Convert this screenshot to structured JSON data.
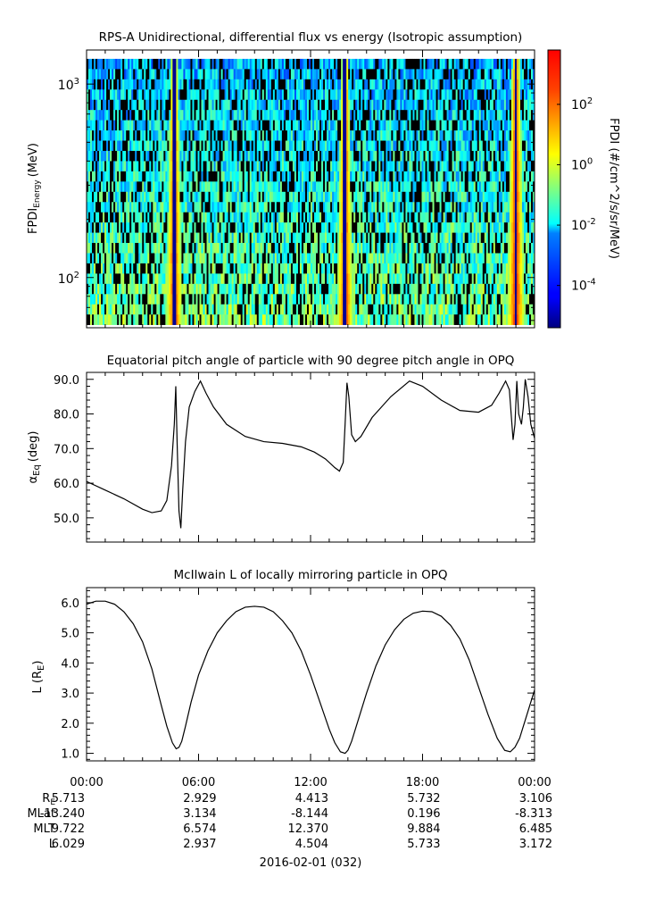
{
  "chart_data": [
    {
      "type": "heatmap",
      "title": "RPS-A Unidirectional, differential flux vs energy (Isotropic assumption)",
      "ylabel": "FPDI",
      "ylabel_sub": "Energy",
      "ylabel_unit": "(MeV)",
      "yscale": "log",
      "ylim": [
        55,
        1500
      ],
      "y_ticks": [
        {
          "value": 100,
          "base": "10",
          "exp": "2"
        },
        {
          "value": 1000,
          "base": "10",
          "exp": "3"
        }
      ],
      "xlim": [
        0,
        24
      ],
      "colorbar": {
        "label": "FPDI (#/cm^2/s/sr/MeV)",
        "scale": "log",
        "range": [
          -5.4,
          3.8
        ],
        "ticks": [
          {
            "value": -4,
            "base": "10",
            "exp": "-4"
          },
          {
            "value": -2,
            "base": "10",
            "exp": "-2"
          },
          {
            "value": 0,
            "base": "10",
            "exp": "0"
          },
          {
            "value": 2,
            "base": "10",
            "exp": "2"
          }
        ]
      },
      "dips": [
        {
          "t": 4.7,
          "min_alt": [
            4.4,
            4.85,
            5.25
          ],
          "half_width": 0.45
        },
        {
          "t": 13.85,
          "min_alt": [
            13.6,
            13.95,
            14.3
          ],
          "half_width": 0.45
        },
        {
          "t": 23.0,
          "min_alt": [
            22.7,
            23.1,
            23.55
          ],
          "half_width": 0.5
        }
      ]
    },
    {
      "type": "line",
      "title": "Equatorial pitch angle of particle with 90 degree pitch angle in OPQ",
      "ylabel": "α",
      "ylabel_sub": "Eq",
      "ylabel_unit": "(deg)",
      "ylim": [
        43,
        92
      ],
      "xlim": [
        0,
        24
      ],
      "y_ticks": [
        50,
        60,
        70,
        80,
        90
      ],
      "series": [
        {
          "x": [
            0,
            1,
            2,
            3,
            3.5,
            4.0,
            4.3,
            4.55,
            4.7,
            4.78,
            4.85,
            4.95,
            5.05,
            5.15,
            5.3,
            5.5,
            5.8,
            6.1,
            6.4,
            6.8,
            7.5,
            8.5,
            9.5,
            10.5,
            11.5,
            12.2,
            12.8,
            13.3,
            13.55,
            13.75,
            13.85,
            13.95,
            14.05,
            14.2,
            14.4,
            14.7,
            15.3,
            16.3,
            17.3,
            18.0,
            19.0,
            20.0,
            21.0,
            21.7,
            22.1,
            22.45,
            22.65,
            22.85,
            22.95,
            23.05,
            23.15,
            23.3,
            23.4,
            23.5,
            23.65,
            23.8,
            24.0
          ],
          "y": [
            60.5,
            58.0,
            55.5,
            52.5,
            51.5,
            52.0,
            55.0,
            65.0,
            77.0,
            88.0,
            72.0,
            52.0,
            47.0,
            58.0,
            72.0,
            82.0,
            86.5,
            89.5,
            86.0,
            82.0,
            77.0,
            73.5,
            72.0,
            71.5,
            70.5,
            69.0,
            67.0,
            64.5,
            63.5,
            66.0,
            77.0,
            89.0,
            85.0,
            74.0,
            72.0,
            73.5,
            79.0,
            85.0,
            89.5,
            88.0,
            84.0,
            81.0,
            80.5,
            82.5,
            86.0,
            89.5,
            87.0,
            72.5,
            77.0,
            89.5,
            80.0,
            77.0,
            82.0,
            90.0,
            85.0,
            77.0,
            73.0
          ]
        }
      ]
    },
    {
      "type": "line",
      "title": "McIlwain L of locally mirroring particle in OPQ",
      "ylabel": "L (R",
      "ylabel_sub": "E",
      "ylabel_unit": ")",
      "ylim": [
        0.75,
        6.5
      ],
      "xlim": [
        0,
        24
      ],
      "y_ticks": [
        1,
        2,
        3,
        4,
        5,
        6
      ],
      "series": [
        {
          "x": [
            0,
            0.5,
            1.0,
            1.5,
            2.0,
            2.5,
            3.0,
            3.5,
            4.0,
            4.3,
            4.6,
            4.8,
            4.95,
            5.1,
            5.3,
            5.6,
            6.0,
            6.5,
            7.0,
            7.5,
            8.0,
            8.5,
            9.0,
            9.5,
            10.0,
            10.5,
            11.0,
            11.5,
            12.0,
            12.5,
            13.0,
            13.3,
            13.6,
            13.85,
            14.0,
            14.2,
            14.5,
            15.0,
            15.5,
            16.0,
            16.5,
            17.0,
            17.5,
            18.0,
            18.5,
            19.0,
            19.5,
            20.0,
            20.5,
            21.0,
            21.5,
            22.0,
            22.4,
            22.7,
            22.95,
            23.2,
            23.5,
            23.8,
            24.0
          ],
          "y": [
            5.95,
            6.05,
            6.05,
            5.95,
            5.7,
            5.3,
            4.7,
            3.8,
            2.6,
            1.9,
            1.35,
            1.15,
            1.2,
            1.4,
            1.9,
            2.7,
            3.6,
            4.4,
            5.0,
            5.4,
            5.7,
            5.85,
            5.88,
            5.85,
            5.7,
            5.4,
            5.0,
            4.4,
            3.6,
            2.7,
            1.8,
            1.35,
            1.05,
            1.0,
            1.1,
            1.4,
            2.0,
            3.0,
            3.9,
            4.6,
            5.1,
            5.45,
            5.65,
            5.72,
            5.7,
            5.55,
            5.25,
            4.8,
            4.1,
            3.2,
            2.3,
            1.5,
            1.1,
            1.05,
            1.2,
            1.5,
            2.1,
            2.7,
            3.1
          ]
        }
      ]
    }
  ],
  "x_axis": {
    "tick_labels": [
      "00:00",
      "06:00",
      "12:00",
      "18:00",
      "00:00"
    ],
    "tick_values": [
      0,
      6,
      12,
      18,
      24
    ],
    "row_labels": [
      {
        "base": "R",
        "sub": "E"
      },
      {
        "base": "MLat",
        "sub": ""
      },
      {
        "base": "MLT",
        "sub": ""
      },
      {
        "base": "L",
        "sub": ""
      }
    ],
    "rows": [
      [
        "5.713",
        "2.929",
        "4.413",
        "5.732",
        "3.106"
      ],
      [
        "-13.240",
        "3.134",
        "-8.144",
        "0.196",
        "-8.313"
      ],
      [
        "9.722",
        "6.574",
        "12.370",
        "9.884",
        "6.485"
      ],
      [
        "6.029",
        "2.937",
        "4.504",
        "5.733",
        "3.172"
      ]
    ],
    "date": "2016-02-01 (032)"
  }
}
